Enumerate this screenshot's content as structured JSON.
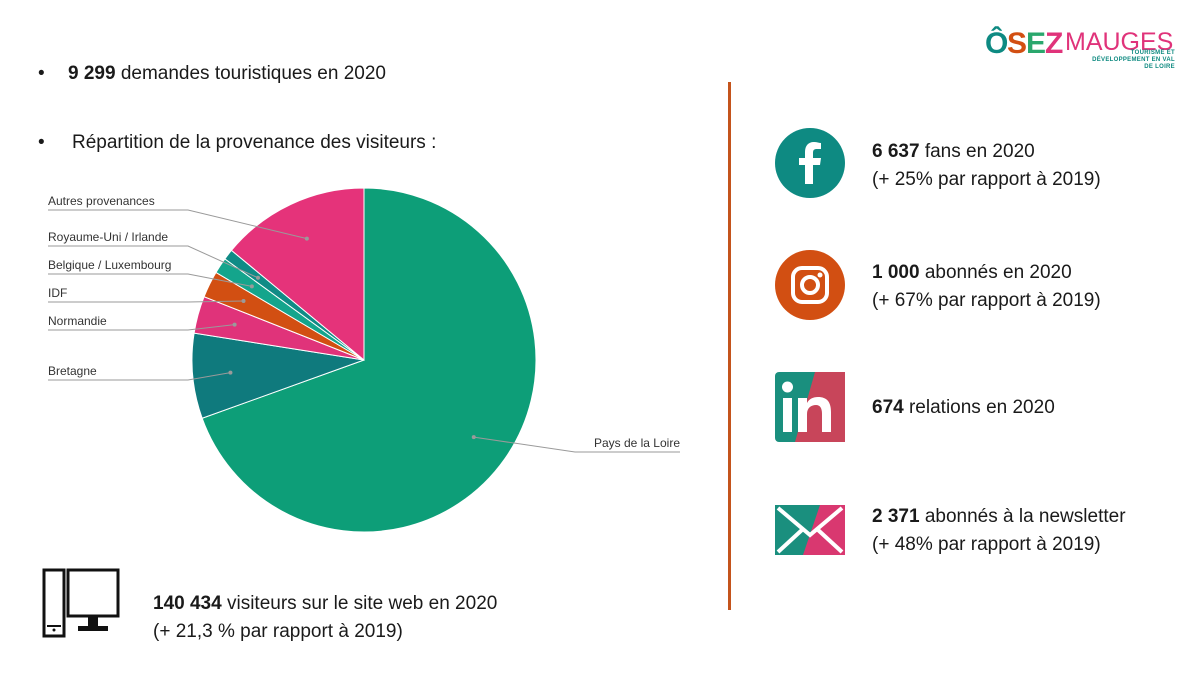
{
  "logo": {
    "text": "ÔSEZMAUGES",
    "tagline": "TOURISME ET DÉVELOPPEMENT EN VAL DE LOIRE"
  },
  "bullets": {
    "requests": {
      "number": "9 299",
      "text": "demandes touristiques en 2020"
    },
    "origin_heading": "Répartition de la provenance des visiteurs :"
  },
  "chart_data": {
    "type": "pie",
    "title": "Répartition de la provenance des visiteurs",
    "unit": "% (estimated from slice angles)",
    "slices": [
      {
        "label": "Pays de la Loire",
        "value": 69.5,
        "color": "#0d9e78"
      },
      {
        "label": "Bretagne",
        "value": 8.0,
        "color": "#0f7a7d"
      },
      {
        "label": "Normandie",
        "value": 3.5,
        "color": "#e0337a"
      },
      {
        "label": "IDF",
        "value": 2.5,
        "color": "#d24f12"
      },
      {
        "label": "Belgique / Luxembourg",
        "value": 1.5,
        "color": "#14a58c"
      },
      {
        "label": "Royaume-Uni / Irlande",
        "value": 1.0,
        "color": "#108b86"
      },
      {
        "label": "Autres provenances",
        "value": 14.0,
        "color": "#e5337a"
      }
    ]
  },
  "website": {
    "icon": "desktop-computer-icon",
    "number": "140 434",
    "text": "visiteurs sur le site web en 2020",
    "sub": "(+ 21,3 % par rapport à 2019)"
  },
  "social": [
    {
      "key": "facebook",
      "icon": "facebook-icon",
      "number": "6 637",
      "text": "fans en 2020",
      "sub": "(+ 25% par rapport à 2019)",
      "color": "#0e8a82"
    },
    {
      "key": "instagram",
      "icon": "instagram-icon",
      "number": "1 000",
      "text": "abonnés en 2020",
      "sub": "(+ 67% par rapport à 2019)",
      "color": "#d24f12"
    },
    {
      "key": "linkedin",
      "icon": "linkedin-icon",
      "number": "674",
      "text": "relations en 2020",
      "sub": "",
      "color": "#1a8f7e"
    },
    {
      "key": "newsletter",
      "icon": "envelope-icon",
      "number": "2 371",
      "text": "abonnés à la newsletter",
      "sub": "(+ 48% par rapport à 2019)",
      "color": "#d93870"
    }
  ],
  "colors": {
    "accent_orange": "#c4541c",
    "teal": "#0e8a82",
    "pink": "#e0337a"
  }
}
